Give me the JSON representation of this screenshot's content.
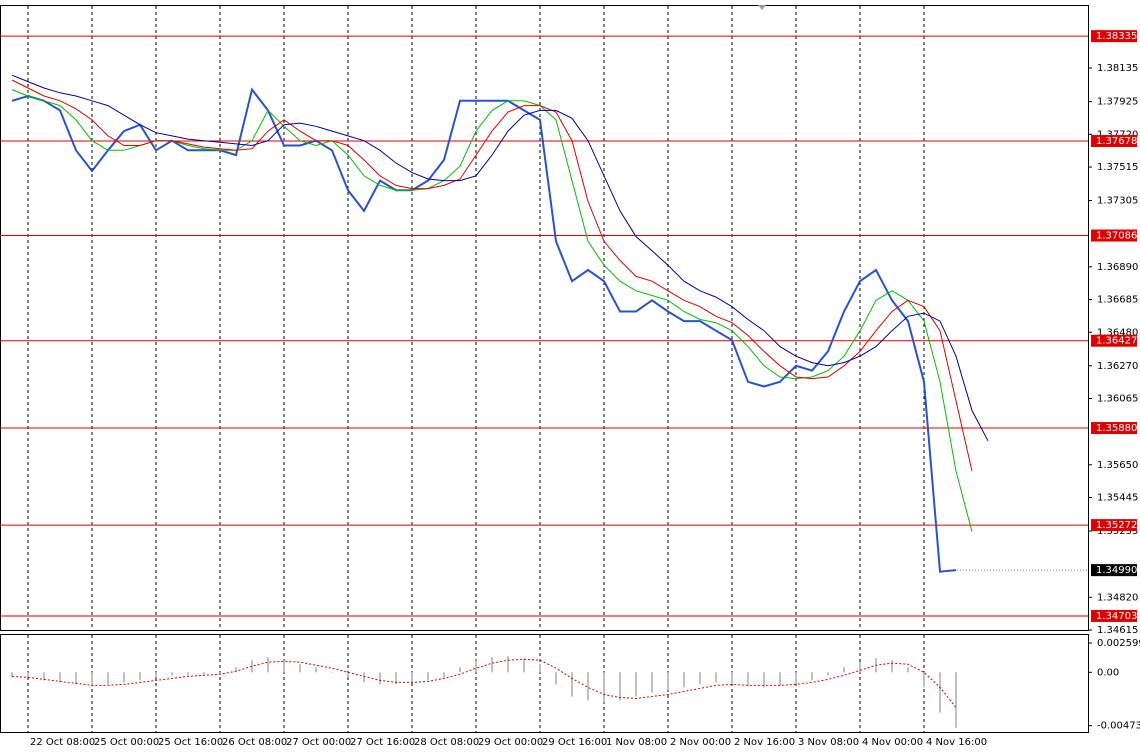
{
  "chart_data": [
    {
      "type": "line",
      "categories": [
        null,
        "22 Oct 08:00",
        null,
        null,
        null,
        "25 Oct 00:00",
        null,
        null,
        null,
        "25 Oct 16:00",
        null,
        null,
        null,
        "26 Oct 08:00",
        null,
        null,
        null,
        "27 Oct 00:00",
        null,
        null,
        null,
        "27 Oct 16:00",
        null,
        null,
        null,
        "28 Oct 08:00",
        null,
        null,
        null,
        "29 Oct 00:00",
        null,
        null,
        null,
        "29 Oct 16:00",
        null,
        null,
        null,
        "1 Nov 08:00",
        null,
        null,
        null,
        "2 Nov 00:00",
        null,
        null,
        null,
        "2 Nov 16:00",
        null,
        null,
        null,
        "3 Nov 08:00",
        null,
        null,
        null,
        "4 Nov 00:00",
        null,
        null,
        null,
        "4 Nov 16:00",
        null,
        null,
        null,
        null
      ],
      "series": [
        {
          "color": "#2a52cc",
          "values": [
            1.3793,
            1.3796,
            1.3793,
            1.3787,
            1.3762,
            1.3749,
            1.3762,
            1.3774,
            1.3778,
            1.3762,
            1.3768,
            1.3762,
            1.3762,
            1.3762,
            1.3759,
            1.38,
            1.3787,
            1.3765,
            1.3765,
            1.3768,
            1.3762,
            1.3737,
            1.3724,
            1.3743,
            1.3737,
            1.3737,
            1.3743,
            1.3756,
            1.3793,
            1.3793,
            1.3793,
            1.3793,
            1.3787,
            1.3781,
            1.3705,
            1.368,
            1.3687,
            1.368,
            1.3661,
            1.3661,
            1.3668,
            1.3661,
            1.3655,
            1.3655,
            1.3649,
            1.3643,
            1.3617,
            1.3614,
            1.3617,
            1.3627,
            1.3624,
            1.3636,
            1.3661,
            1.368,
            1.3687,
            1.3668,
            1.3655,
            1.3617,
            1.3498,
            1.3499,
            null,
            null
          ]
        },
        {
          "color": "#00c000",
          "values": [
            1.38,
            1.3796,
            1.3793,
            1.379,
            1.3781,
            1.3768,
            1.3762,
            1.3762,
            1.3765,
            1.3768,
            1.3768,
            1.3765,
            1.3763,
            1.3762,
            1.3762,
            1.3768,
            1.3787,
            1.3777,
            1.3768,
            1.3765,
            1.3768,
            1.3759,
            1.3746,
            1.374,
            1.3737,
            1.3737,
            1.3738,
            1.3743,
            1.3752,
            1.3774,
            1.3787,
            1.3793,
            1.3793,
            1.379,
            1.3781,
            1.3743,
            1.3705,
            1.369,
            1.368,
            1.3674,
            1.3671,
            1.3668,
            1.3661,
            1.3656,
            1.3654,
            1.3649,
            1.3639,
            1.3627,
            1.362,
            1.3619,
            1.362,
            1.3624,
            1.3633,
            1.3649,
            1.3668,
            1.3674,
            1.3668,
            1.3655,
            1.3617,
            1.3561,
            1.3523,
            null
          ]
        },
        {
          "color": "#e00000",
          "values": [
            1.3806,
            1.3801,
            1.3796,
            1.3793,
            1.3788,
            1.3781,
            1.3771,
            1.3765,
            1.3765,
            1.3768,
            1.3768,
            1.3766,
            1.3764,
            1.3763,
            1.3762,
            1.3763,
            1.3774,
            1.3781,
            1.3774,
            1.3768,
            1.3768,
            1.3765,
            1.3756,
            1.3746,
            1.374,
            1.3738,
            1.3738,
            1.374,
            1.3744,
            1.3759,
            1.3774,
            1.3786,
            1.379,
            1.379,
            1.3786,
            1.3768,
            1.373,
            1.3705,
            1.3693,
            1.3683,
            1.368,
            1.3674,
            1.3668,
            1.3664,
            1.3658,
            1.3654,
            1.3646,
            1.3636,
            1.3627,
            1.362,
            1.3619,
            1.362,
            1.3627,
            1.3636,
            1.3649,
            1.3661,
            1.3668,
            1.3664,
            1.3649,
            1.3605,
            1.3561,
            null
          ]
        },
        {
          "color": "#0000a0",
          "values": [
            1.3809,
            1.3805,
            1.3801,
            1.3798,
            1.3796,
            1.3793,
            1.379,
            1.3784,
            1.3778,
            1.3773,
            1.3771,
            1.3769,
            1.3768,
            1.3767,
            1.3766,
            1.3765,
            1.3768,
            1.3778,
            1.3779,
            1.3777,
            1.3774,
            1.3771,
            1.3768,
            1.3762,
            1.3754,
            1.3748,
            1.3744,
            1.3743,
            1.3743,
            1.3746,
            1.3759,
            1.3774,
            1.3784,
            1.3787,
            1.3787,
            1.3782,
            1.3768,
            1.3746,
            1.3724,
            1.3708,
            1.3699,
            1.369,
            1.368,
            1.3674,
            1.367,
            1.3664,
            1.3656,
            1.3649,
            1.3639,
            1.3633,
            1.3629,
            1.3627,
            1.3629,
            1.3633,
            1.3639,
            1.3649,
            1.3658,
            1.366,
            1.3655,
            1.3633,
            1.3599,
            1.358
          ]
        }
      ],
      "ylim": [
        1.34615,
        1.3853
      ],
      "yticks": [
        1.38135,
        1.37925,
        {
          "value": 1.3772,
          "label": "1.37720"
        },
        1.37515,
        1.37305,
        {
          "value": 1.3689,
          "label": "1.36890"
        },
        1.36685,
        {
          "value": 1.3648,
          "label": "1.36480"
        },
        {
          "value": 1.3627,
          "label": "1.36270"
        },
        1.36065,
        {
          "value": 1.3565,
          "label": "1.35650"
        },
        1.35445,
        1.35235,
        {
          "value": 1.3482,
          "label": "1.34820"
        },
        1.34615
      ],
      "levels": [
        1.38335,
        1.37678,
        1.37086,
        1.36427,
        1.3588,
        1.35272,
        1.34703
      ],
      "level_labels": [
        "1.38335",
        "1.37678",
        "1.37086",
        "1.36427",
        "1.35880",
        "1.35272",
        "1.34703"
      ],
      "level_color": "#e00000",
      "last_price": 1.3499,
      "last_price_label": "1.34990",
      "grid": true
    },
    {
      "type": "bar",
      "series": [
        {
          "color": "#c0c0c0",
          "values": [
            -0.00045,
            -0.00045,
            -0.00072,
            -0.0009,
            -0.00107,
            -0.00125,
            -0.00107,
            -0.0009,
            -0.00072,
            -0.00045,
            -0.00027,
            -0.00027,
            -0.00018,
            -0.00018,
            0.00045,
            0.00107,
            0.00134,
            0.00107,
            0.00072,
            0.00045,
            0,
            -0.00045,
            -0.0009,
            -0.00107,
            -0.00107,
            -0.0009,
            -0.00072,
            -0.00045,
            0.00045,
            0.00107,
            0.00134,
            0.00143,
            0.00125,
            0.00072,
            -0.00107,
            -0.00215,
            -0.00251,
            -0.00269,
            -0.00251,
            -0.00215,
            -0.00179,
            -0.00161,
            -0.00134,
            -0.00107,
            -0.0009,
            -0.00107,
            -0.00125,
            -0.00134,
            -0.00125,
            -0.00107,
            -0.00072,
            -0.00027,
            0.00045,
            0.0009,
            0.00125,
            0.00107,
            0.00045,
            -0.00134,
            -0.00358,
            -0.00492,
            null,
            null
          ]
        },
        {
          "color": "#e00000",
          "values": [
            -0.00036,
            -0.00045,
            -0.00063,
            -0.00081,
            -0.00098,
            -0.00116,
            -0.00116,
            -0.00107,
            -0.0009,
            -0.00072,
            -0.00054,
            -0.00036,
            -0.00027,
            -0.00018,
            9e-05,
            0.00054,
            0.0009,
            0.00098,
            0.0009,
            0.00063,
            0.00036,
            0,
            -0.00036,
            -0.00072,
            -0.0009,
            -0.0009,
            -0.00081,
            -0.00054,
            -0.00018,
            0.00036,
            0.00081,
            0.00107,
            0.00116,
            0.00107,
            0.00036,
            -0.00054,
            -0.00134,
            -0.00197,
            -0.00224,
            -0.00233,
            -0.00215,
            -0.00197,
            -0.0017,
            -0.00143,
            -0.00116,
            -0.00107,
            -0.00116,
            -0.00116,
            -0.00116,
            -0.00107,
            -0.0009,
            -0.00063,
            -0.00027,
            0.00018,
            0.00063,
            0.00081,
            0.00072,
            0,
            -0.00134,
            -0.00313,
            null,
            null
          ]
        }
      ],
      "ylim": [
        -0.0053,
        0.0034
      ],
      "yticks": [
        0.002599,
        {
          "value": 0,
          "label": "0.00"
        },
        -0.004739
      ]
    }
  ]
}
